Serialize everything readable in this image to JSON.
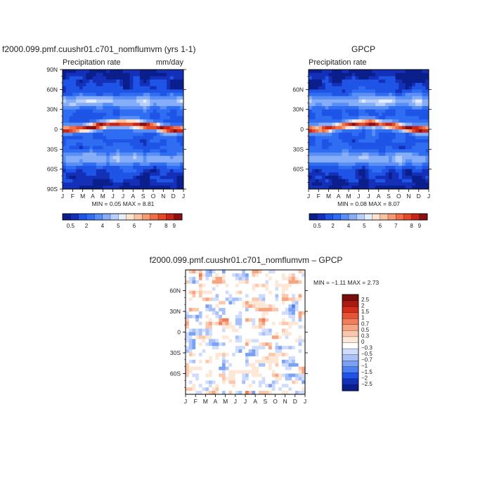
{
  "colors": {
    "precip_scale": [
      "#0a1e8c",
      "#1530b8",
      "#1e55e6",
      "#2f6df2",
      "#5a8ef7",
      "#86aef8",
      "#b7cffb",
      "#e6eefc",
      "#fde3cf",
      "#f9c2a3",
      "#f59a73",
      "#ef7047",
      "#e54a25",
      "#c8261a",
      "#8c1010"
    ],
    "diff_scale": [
      "#0a1e8c",
      "#1530b8",
      "#1e55e6",
      "#4d80f2",
      "#7aa1f6",
      "#a8c2f9",
      "#cfdcfb",
      "#ffffff",
      "#fde7d6",
      "#fbc8ad",
      "#f7a483",
      "#f27d5b",
      "#e95335",
      "#d42e1c",
      "#a81a12",
      "#7a0c0c"
    ],
    "ocean_blue": "#1e55e6"
  },
  "chart_data": [
    {
      "type": "heatmap",
      "title": "f2000.099.pmf.cuushr01.c701_nomflumvm (yrs 1-1)",
      "subtitle_left": "Precipitation rate",
      "subtitle_right": "mm/day",
      "x": [
        "J",
        "F",
        "M",
        "A",
        "M",
        "J",
        "J",
        "A",
        "S",
        "O",
        "N",
        "D",
        "J"
      ],
      "yticks": [
        "90N",
        "60N",
        "30N",
        "0",
        "30S",
        "60S",
        "90S"
      ],
      "ylim": [
        -90,
        90
      ],
      "stats": "MIN =    0.05  MAX =    8.81",
      "colorbar_labels": [
        "0.5",
        "2",
        "4",
        "5",
        "6",
        "7",
        "8",
        "9"
      ],
      "min": 0.05,
      "max": 8.81
    },
    {
      "type": "heatmap",
      "title": "GPCP",
      "subtitle_left": "Precipitation rate",
      "x": [
        "J",
        "F",
        "M",
        "A",
        "M",
        "J",
        "J",
        "A",
        "S",
        "O",
        "N",
        "D",
        "J"
      ],
      "yticks": [
        "60N",
        "30N",
        "0",
        "30S",
        "60S"
      ],
      "ylim": [
        -90,
        90
      ],
      "stats": "MIN =    0.08  MAX =    8.07",
      "colorbar_labels": [
        "0.5",
        "2",
        "4",
        "5",
        "6",
        "7",
        "8",
        "9"
      ],
      "min": 0.08,
      "max": 8.07
    },
    {
      "type": "heatmap",
      "title": "f2000.099.pmf.cuushr01.c701_nomflumvm  –  GPCP",
      "x": [
        "J",
        "F",
        "M",
        "A",
        "M",
        "J",
        "J",
        "A",
        "S",
        "O",
        "N",
        "D",
        "J"
      ],
      "yticks": [
        "60N",
        "30N",
        "0",
        "30S",
        "60S"
      ],
      "ylim": [
        -90,
        90
      ],
      "stats": "MIN =   −1.11  MAX =    2.73",
      "colorbar_labels": [
        "2.5",
        "2",
        "1.5",
        "1",
        "0.7",
        "0.5",
        "0.3",
        "0",
        "−0.3",
        "−0.5",
        "−0.7",
        "−1",
        "−1.5",
        "−2",
        "−2.5"
      ],
      "min": -1.11,
      "max": 2.73
    }
  ]
}
